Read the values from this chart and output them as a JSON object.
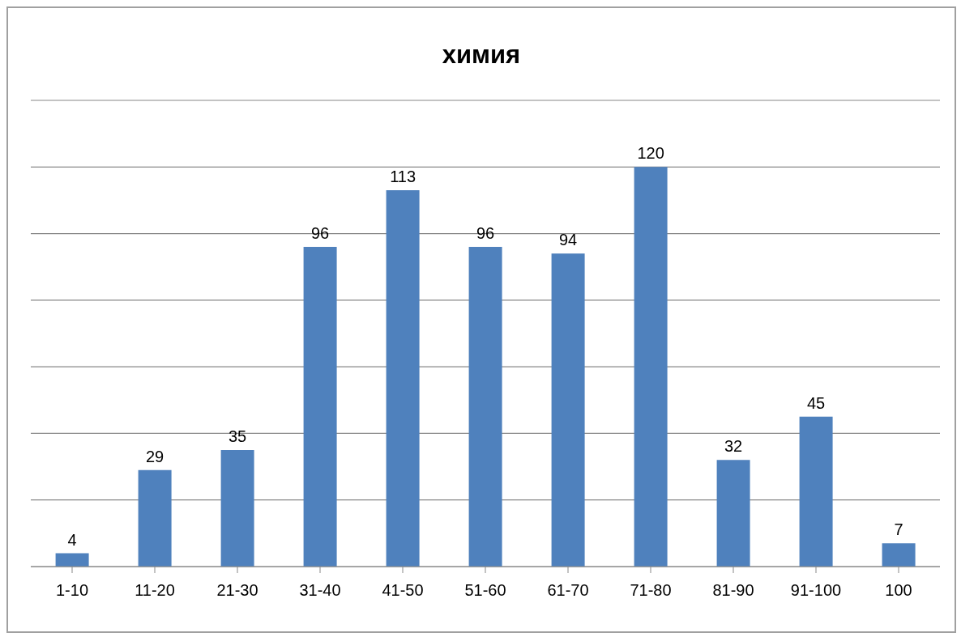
{
  "chart_data": {
    "type": "bar",
    "title": "химия",
    "categories": [
      "1-10",
      "11-20",
      "21-30",
      "31-40",
      "41-50",
      "51-60",
      "61-70",
      "71-80",
      "81-90",
      "91-100",
      "100"
    ],
    "values": [
      4,
      29,
      35,
      96,
      113,
      96,
      94,
      120,
      32,
      45,
      7
    ],
    "color": "#4f81bd",
    "ylim": [
      0,
      140
    ],
    "yticks": [
      {
        "value": 0,
        "label": null
      },
      {
        "value": 20,
        "label": null
      },
      {
        "value": 40,
        "label": null
      },
      {
        "value": 60,
        "label": null
      },
      {
        "value": 80,
        "label": null
      },
      {
        "value": 100,
        "label": null
      },
      {
        "value": 120,
        "label": null
      },
      {
        "value": 140,
        "label": null
      }
    ],
    "grid": "y",
    "tick_labels": "x",
    "data_labels": true,
    "legend": false
  }
}
